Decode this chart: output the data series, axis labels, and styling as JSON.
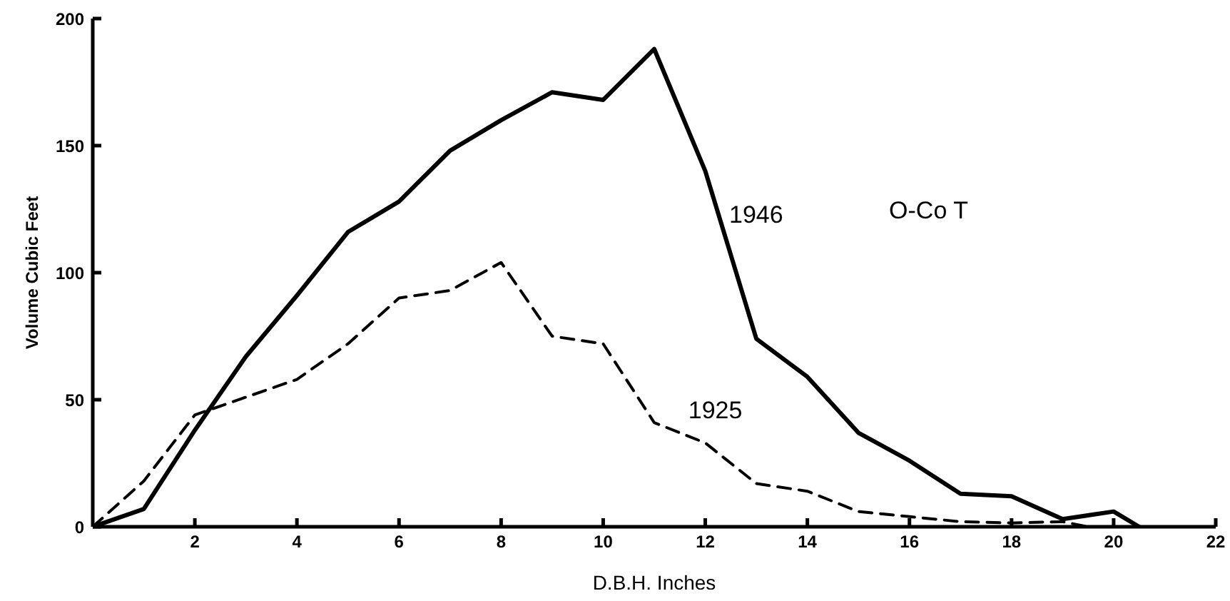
{
  "chart_data": {
    "type": "line",
    "xlabel": "D.B.H. Inches",
    "ylabel": "Volume Cubic Feet",
    "annotations": [
      "O-Co T"
    ],
    "xlim": [
      0,
      22
    ],
    "xticks": [
      2,
      4,
      6,
      8,
      10,
      12,
      14,
      16,
      18,
      20,
      22
    ],
    "ylim": [
      0,
      200
    ],
    "yticks": [
      0,
      50,
      100,
      150,
      200
    ],
    "grid": false,
    "legend": false,
    "marker": "none",
    "series": [
      {
        "name": "1946",
        "color": "#000000",
        "line_style": "solid",
        "x": [
          0,
          1,
          2,
          3,
          4,
          5,
          6,
          7,
          8,
          9,
          10,
          11,
          12,
          13,
          14,
          15,
          16,
          17,
          18,
          19,
          20,
          20.5
        ],
        "values": [
          0,
          7,
          38,
          67,
          91,
          116,
          128,
          148,
          160,
          171,
          168,
          188,
          140,
          74,
          59,
          37,
          26,
          13,
          12,
          3,
          6,
          0
        ]
      },
      {
        "name": "1925",
        "color": "#000000",
        "line_style": "dashed",
        "x": [
          0,
          1,
          2,
          3,
          4,
          5,
          6,
          7,
          8,
          9,
          10,
          11,
          12,
          13,
          14,
          15,
          16,
          17,
          18,
          19,
          19.5
        ],
        "values": [
          0,
          18,
          44,
          51,
          58,
          72,
          90,
          93,
          104,
          75,
          72,
          41,
          33,
          17,
          14,
          6,
          4,
          2,
          1.5,
          2,
          0
        ]
      }
    ]
  }
}
